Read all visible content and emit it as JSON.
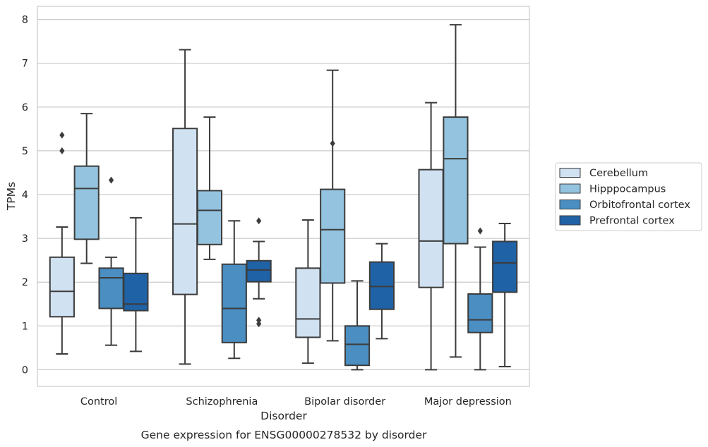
{
  "chart_data": {
    "type": "boxplot",
    "caption": "Gene expression for ENSG00000278532 by disorder",
    "xlabel": "Disorder",
    "ylabel": "TPMs",
    "ylim": [
      -0.38,
      8.3
    ],
    "yticks": [
      0,
      1,
      2,
      3,
      4,
      5,
      6,
      7,
      8
    ],
    "grid": true,
    "legend_position": "right",
    "categories": [
      "Control",
      "Schizophrenia",
      "Bipolar disorder",
      "Major depression"
    ],
    "series": [
      {
        "name": "Cerebellum",
        "color": "#d0e1f1",
        "boxes": [
          {
            "whisker_low": 0.36,
            "q1": 1.21,
            "median": 1.79,
            "q3": 2.57,
            "whisker_high": 3.26,
            "outliers": [
              5.0,
              5.36
            ]
          },
          {
            "whisker_low": 0.13,
            "q1": 1.72,
            "median": 3.33,
            "q3": 5.51,
            "whisker_high": 7.31,
            "outliers": []
          },
          {
            "whisker_low": 0.15,
            "q1": 0.74,
            "median": 1.16,
            "q3": 2.32,
            "whisker_high": 3.42,
            "outliers": []
          },
          {
            "whisker_low": 0.0,
            "q1": 1.88,
            "median": 2.94,
            "q3": 4.57,
            "whisker_high": 6.1,
            "outliers": []
          }
        ]
      },
      {
        "name": "Hipppocampus",
        "color": "#94c3df",
        "boxes": [
          {
            "whisker_low": 2.43,
            "q1": 2.98,
            "median": 4.14,
            "q3": 4.65,
            "whisker_high": 5.85,
            "outliers": []
          },
          {
            "whisker_low": 2.52,
            "q1": 2.86,
            "median": 3.64,
            "q3": 4.09,
            "whisker_high": 5.77,
            "outliers": []
          },
          {
            "whisker_low": 0.66,
            "q1": 1.98,
            "median": 3.2,
            "q3": 4.12,
            "whisker_high": 6.84,
            "outliers": [
              5.17
            ]
          },
          {
            "whisker_low": 0.29,
            "q1": 2.88,
            "median": 4.82,
            "q3": 5.77,
            "whisker_high": 7.88,
            "outliers": []
          }
        ]
      },
      {
        "name": "Orbitofrontal cortex",
        "color": "#4a8ec2",
        "boxes": [
          {
            "whisker_low": 0.56,
            "q1": 1.4,
            "median": 2.1,
            "q3": 2.32,
            "whisker_high": 2.57,
            "outliers": [
              4.33
            ]
          },
          {
            "whisker_low": 0.26,
            "q1": 0.62,
            "median": 1.4,
            "q3": 2.41,
            "whisker_high": 3.4,
            "outliers": []
          },
          {
            "whisker_low": 0.0,
            "q1": 0.1,
            "median": 0.58,
            "q3": 1.0,
            "whisker_high": 2.03,
            "outliers": []
          },
          {
            "whisker_low": 0.0,
            "q1": 0.85,
            "median": 1.14,
            "q3": 1.73,
            "whisker_high": 2.8,
            "outliers": [
              3.17
            ]
          }
        ]
      },
      {
        "name": "Prefrontal cortex",
        "color": "#1f62a6",
        "boxes": [
          {
            "whisker_low": 0.42,
            "q1": 1.35,
            "median": 1.5,
            "q3": 2.2,
            "whisker_high": 3.47,
            "outliers": []
          },
          {
            "whisker_low": 1.62,
            "q1": 2.01,
            "median": 2.28,
            "q3": 2.49,
            "whisker_high": 2.93,
            "outliers": [
              1.05,
              1.13,
              3.4
            ]
          },
          {
            "whisker_low": 0.71,
            "q1": 1.38,
            "median": 1.9,
            "q3": 2.46,
            "whisker_high": 2.88,
            "outliers": []
          },
          {
            "whisker_low": 0.07,
            "q1": 1.77,
            "median": 2.44,
            "q3": 2.93,
            "whisker_high": 3.34,
            "outliers": []
          }
        ]
      }
    ]
  }
}
